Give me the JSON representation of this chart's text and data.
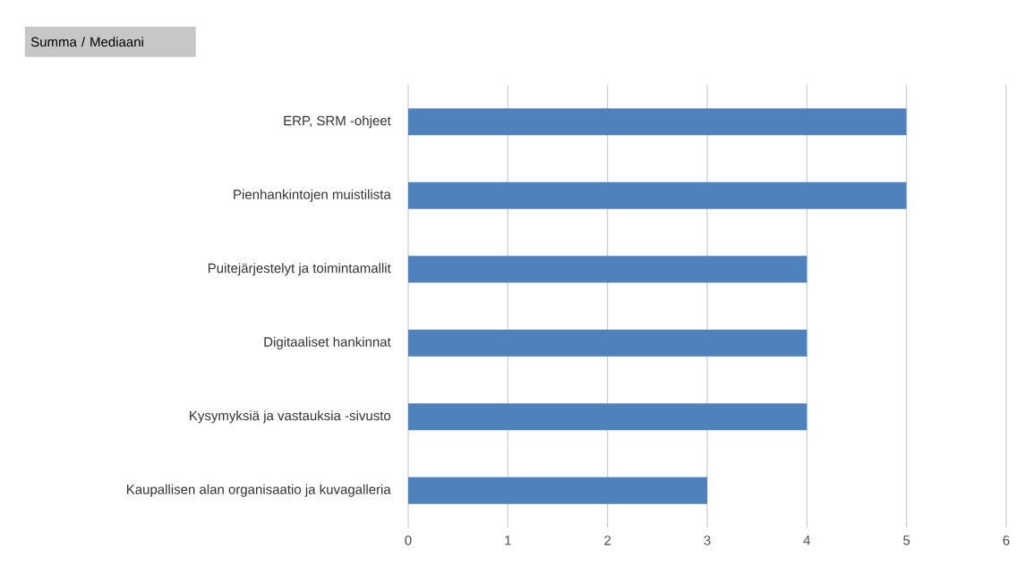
{
  "chart_data": {
    "type": "bar",
    "orientation": "horizontal",
    "title": "Summa  / Mediaani",
    "categories": [
      "ERP, SRM -ohjeet",
      "Pienhankintojen muistilista",
      "Puitejärjestelyt ja toimintamallit",
      "Digitaaliset hankinnat",
      "Kysymyksiä ja vastauksia -sivusto",
      "Kaupallisen alan organisaatio ja kuvagalleria"
    ],
    "values": [
      5,
      5,
      4,
      4,
      4,
      3
    ],
    "color": "#4f81bd",
    "xlim": [
      0,
      6
    ],
    "xticks": [
      0,
      1,
      2,
      3,
      4,
      5,
      6
    ],
    "grid": "x"
  }
}
